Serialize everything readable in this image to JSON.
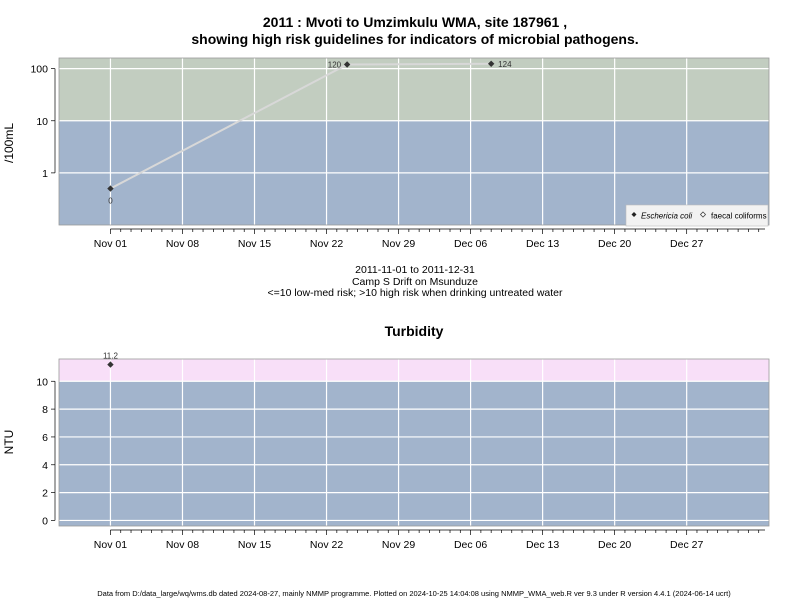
{
  "colors": {
    "panel_low": "#a2b4cc",
    "panel_high": "#c2cdc0",
    "panel_turb_high": "#f8dff8",
    "grid": "#ffffff",
    "line": "#d8d8d8",
    "marker": "#333333",
    "frame": "#9a9a9a"
  },
  "chart_data": [
    {
      "type": "line",
      "title_line1": "2011 : Mvoti to Umzimkulu WMA, site 187961 ,",
      "title_line2": "showing high risk guidelines for indicators of microbial pathogens.",
      "ylabel": "/100mL",
      "y_scale": "log",
      "ylim": [
        0.1,
        160
      ],
      "xlim": [
        "2011-10-27",
        "2012-01-04"
      ],
      "x_ticks": [
        {
          "date": "2011-11-01",
          "label": "Nov 01"
        },
        {
          "date": "2011-11-08",
          "label": "Nov 08"
        },
        {
          "date": "2011-11-15",
          "label": "Nov 15"
        },
        {
          "date": "2011-11-22",
          "label": "Nov 22"
        },
        {
          "date": "2011-11-29",
          "label": "Nov 29"
        },
        {
          "date": "2011-12-06",
          "label": "Dec 06"
        },
        {
          "date": "2011-12-13",
          "label": "Dec 13"
        },
        {
          "date": "2011-12-20",
          "label": "Dec 20"
        },
        {
          "date": "2011-12-27",
          "label": "Dec 27"
        }
      ],
      "y_ticks": [
        {
          "value": 1,
          "label": "1"
        },
        {
          "value": 10,
          "label": "10"
        },
        {
          "value": 100,
          "label": "100"
        }
      ],
      "threshold": 10,
      "series": [
        {
          "name": "Eschericia coli",
          "points": [
            {
              "x": "2011-11-01",
              "y": 0.5,
              "label": "0"
            },
            {
              "x": "2011-11-24",
              "y": 120,
              "label": "120"
            },
            {
              "x": "2011-12-08",
              "y": 124,
              "label": "124"
            }
          ]
        }
      ],
      "legend": {
        "position": "bottom-right",
        "entries": [
          {
            "label": "Eschericia coli",
            "marker": "filled-diamond"
          },
          {
            "label": "faecal coliforms",
            "marker": "open-diamond"
          }
        ]
      },
      "grid": true
    },
    {
      "type": "line",
      "title": "Turbidity",
      "ylabel": "NTU",
      "ylim": [
        -0.4,
        11.6
      ],
      "xlim": [
        "2011-10-27",
        "2012-01-04"
      ],
      "x_ticks": [
        {
          "date": "2011-11-01",
          "label": "Nov 01"
        },
        {
          "date": "2011-11-08",
          "label": "Nov 08"
        },
        {
          "date": "2011-11-15",
          "label": "Nov 15"
        },
        {
          "date": "2011-11-22",
          "label": "Nov 22"
        },
        {
          "date": "2011-11-29",
          "label": "Nov 29"
        },
        {
          "date": "2011-12-06",
          "label": "Dec 06"
        },
        {
          "date": "2011-12-13",
          "label": "Dec 13"
        },
        {
          "date": "2011-12-20",
          "label": "Dec 20"
        },
        {
          "date": "2011-12-27",
          "label": "Dec 27"
        }
      ],
      "y_ticks": [
        {
          "value": 0,
          "label": "0"
        },
        {
          "value": 2,
          "label": "2"
        },
        {
          "value": 4,
          "label": "4"
        },
        {
          "value": 6,
          "label": "6"
        },
        {
          "value": 8,
          "label": "8"
        },
        {
          "value": 10,
          "label": "10"
        }
      ],
      "threshold": 10,
      "series": [
        {
          "points": [
            {
              "x": "2011-11-01",
              "y": 11.2,
              "label": "11.2"
            }
          ]
        }
      ],
      "grid": true
    }
  ],
  "caption": {
    "date_range": "2011-11-01 to 2011-12-31",
    "site_name": "Camp S Drift on Msunduze",
    "risk_note": "<=10 low-med risk; >10 high risk when drinking untreated water"
  },
  "footer": "Data from D:/data_large/wq/wms.db dated 2024-08-27, mainly NMMP programme. Plotted on 2024-10-25 14:04:08 using NMMP_WMA_web.R ver 9.3 under R version 4.4.1 (2024-06-14 ucrt)"
}
